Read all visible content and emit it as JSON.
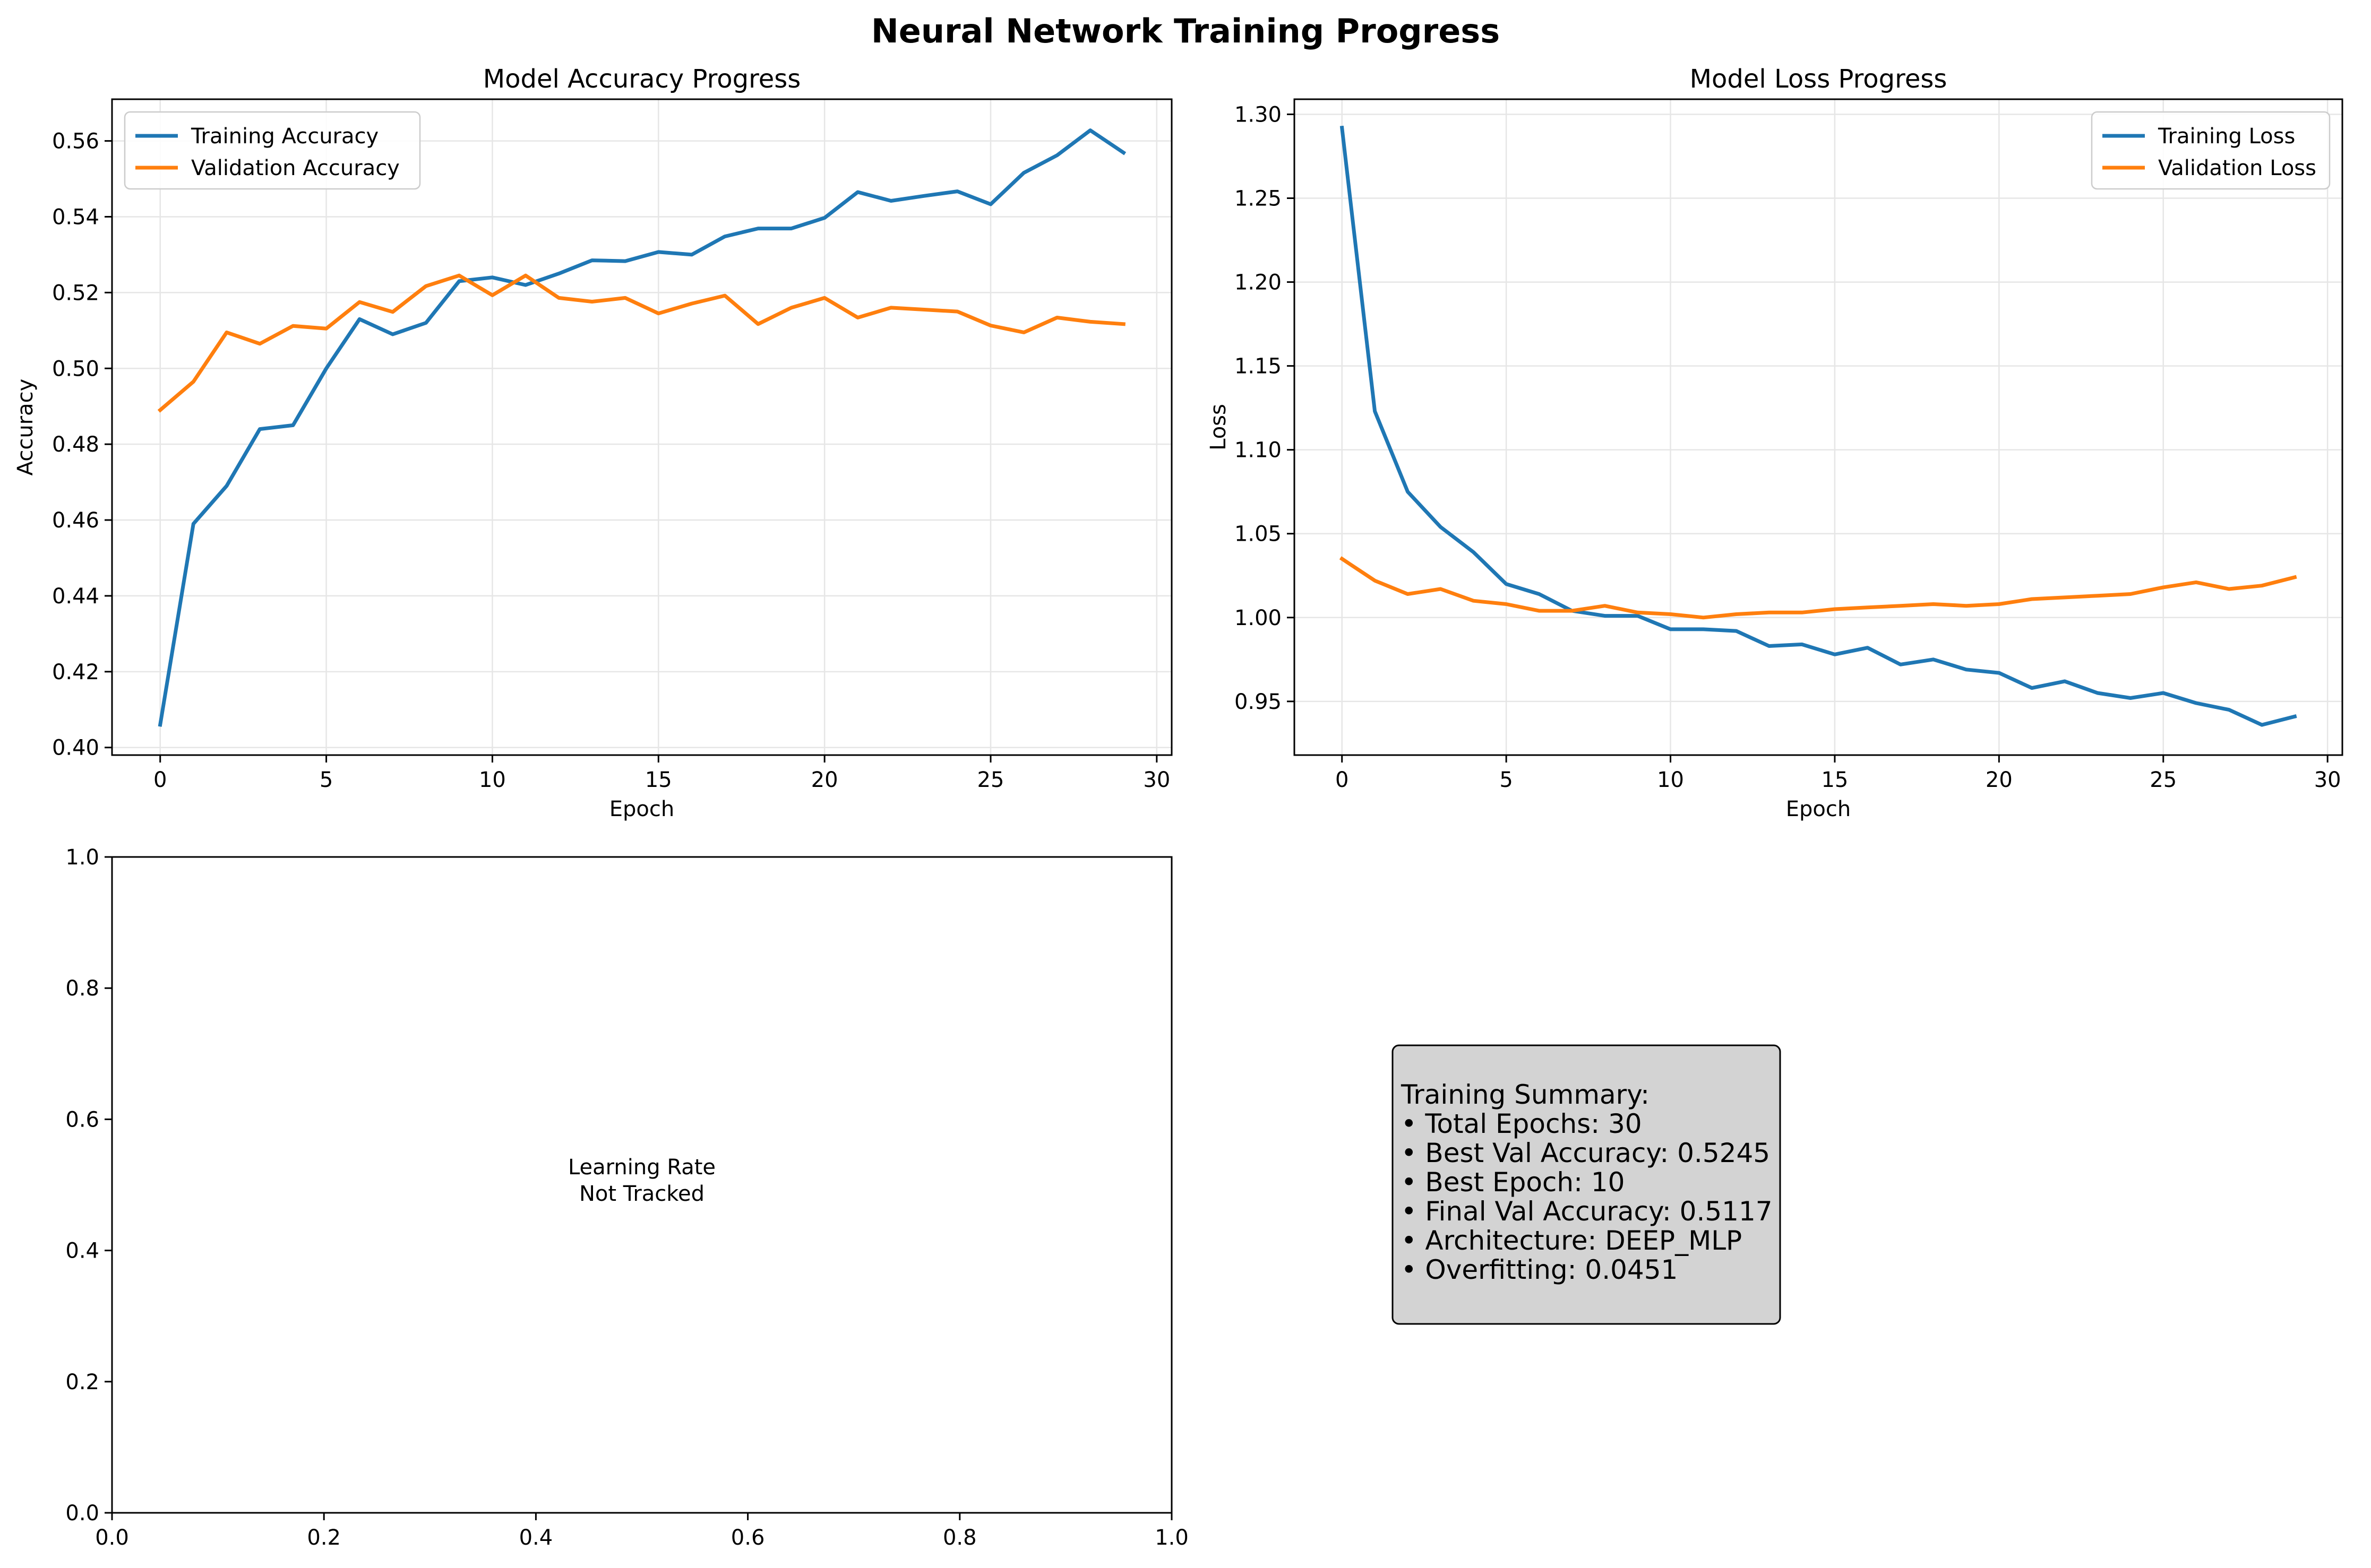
{
  "figure_title": "Neural Network Training Progress",
  "colors": {
    "training": "#1f77b4",
    "validation": "#ff7f0e",
    "grid": "#e6e6e6",
    "summary_bg": "#d3d3d3"
  },
  "chart_data": [
    {
      "type": "line",
      "title": "Model Accuracy Progress",
      "xlabel": "Epoch",
      "ylabel": "Accuracy",
      "xlim": [
        -1.45,
        30.45
      ],
      "ylim": [
        0.398,
        0.571
      ],
      "xticks": [
        0,
        5,
        10,
        15,
        20,
        25,
        30
      ],
      "yticks": [
        0.4,
        0.42,
        0.44,
        0.46,
        0.48,
        0.5,
        0.52,
        0.54,
        0.56
      ],
      "ytick_labels": [
        "0.40",
        "0.42",
        "0.44",
        "0.46",
        "0.48",
        "0.50",
        "0.52",
        "0.54",
        "0.56"
      ],
      "grid": true,
      "legend": "upper-left",
      "x": [
        0,
        1,
        2,
        3,
        4,
        5,
        6,
        7,
        8,
        9,
        10,
        11,
        12,
        13,
        14,
        15,
        16,
        17,
        18,
        19,
        20,
        21,
        22,
        23,
        24,
        25,
        26,
        27,
        28,
        29
      ],
      "series": [
        {
          "name": "Training Accuracy",
          "color": "#1f77b4",
          "values": [
            0.406,
            0.459,
            0.469,
            0.484,
            0.485,
            0.5,
            0.513,
            0.509,
            0.512,
            0.523,
            0.524,
            0.522,
            0.525,
            0.5285,
            0.5283,
            0.5307,
            0.53,
            0.5348,
            0.5369,
            0.5369,
            0.5397,
            0.5465,
            0.5442,
            0.5455,
            0.5467,
            0.5433,
            0.5516,
            0.5562,
            0.5628,
            0.5569
          ]
        },
        {
          "name": "Validation Accuracy",
          "color": "#ff7f0e",
          "values": [
            0.489,
            0.4965,
            0.5095,
            0.5065,
            0.5112,
            0.5105,
            0.5175,
            0.5149,
            0.5217,
            0.5245,
            0.5193,
            0.5245,
            0.5186,
            0.5176,
            0.5186,
            0.5145,
            0.5171,
            0.5192,
            0.5117,
            0.516,
            0.5186,
            0.5134,
            0.516,
            0.5155,
            0.515,
            0.5113,
            0.5095,
            0.5134,
            0.5123,
            0.5117
          ]
        }
      ]
    },
    {
      "type": "line",
      "title": "Model Loss Progress",
      "xlabel": "Epoch",
      "ylabel": "Loss",
      "xlim": [
        -1.45,
        30.45
      ],
      "ylim": [
        0.918,
        1.309
      ],
      "xticks": [
        0,
        5,
        10,
        15,
        20,
        25,
        30
      ],
      "yticks": [
        0.95,
        1.0,
        1.05,
        1.1,
        1.15,
        1.2,
        1.25,
        1.3
      ],
      "ytick_labels": [
        "0.95",
        "1.00",
        "1.05",
        "1.10",
        "1.15",
        "1.20",
        "1.25",
        "1.30"
      ],
      "grid": true,
      "legend": "upper-right",
      "x": [
        0,
        1,
        2,
        3,
        4,
        5,
        6,
        7,
        8,
        9,
        10,
        11,
        12,
        13,
        14,
        15,
        16,
        17,
        18,
        19,
        20,
        21,
        22,
        23,
        24,
        25,
        26,
        27,
        28,
        29
      ],
      "series": [
        {
          "name": "Training Loss",
          "color": "#1f77b4",
          "values": [
            1.292,
            1.123,
            1.075,
            1.054,
            1.039,
            1.02,
            1.014,
            1.004,
            1.001,
            1.001,
            0.993,
            0.993,
            0.992,
            0.983,
            0.984,
            0.978,
            0.982,
            0.972,
            0.975,
            0.969,
            0.967,
            0.958,
            0.962,
            0.955,
            0.952,
            0.955,
            0.949,
            0.945,
            0.936,
            0.941
          ]
        },
        {
          "name": "Validation Loss",
          "color": "#ff7f0e",
          "values": [
            1.035,
            1.022,
            1.014,
            1.017,
            1.01,
            1.008,
            1.004,
            1.004,
            1.007,
            1.003,
            1.002,
            1.0,
            1.002,
            1.003,
            1.003,
            1.005,
            1.006,
            1.007,
            1.008,
            1.007,
            1.008,
            1.011,
            1.012,
            1.013,
            1.014,
            1.018,
            1.021,
            1.017,
            1.019,
            1.024
          ]
        }
      ]
    },
    {
      "type": "line",
      "title": "",
      "xlim": [
        0,
        1
      ],
      "ylim": [
        0,
        1
      ],
      "xticks": [
        0.0,
        0.2,
        0.4,
        0.6,
        0.8,
        1.0
      ],
      "xtick_labels": [
        "0.0",
        "0.2",
        "0.4",
        "0.6",
        "0.8",
        "1.0"
      ],
      "yticks": [
        0.0,
        0.2,
        0.4,
        0.6,
        0.8,
        1.0
      ],
      "ytick_labels": [
        "0.0",
        "0.2",
        "0.4",
        "0.6",
        "0.8",
        "1.0"
      ],
      "grid": false,
      "annotation": [
        "Learning Rate",
        "Not Tracked"
      ],
      "series": []
    }
  ],
  "summary": {
    "lines": [
      "Training Summary:",
      "• Total Epochs: 30",
      "• Best Val Accuracy: 0.5245",
      "• Best Epoch: 10",
      "• Final Val Accuracy: 0.5117",
      "• Architecture: DEEP_MLP",
      "• Overfitting: 0.0451"
    ]
  }
}
